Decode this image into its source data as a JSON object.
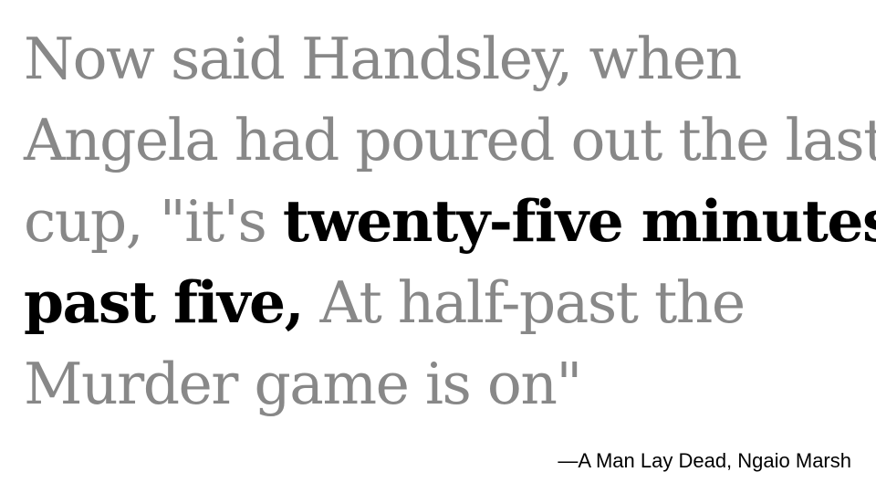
{
  "quote": {
    "line1": "Now said Handsley, when",
    "line2": "Angela had poured out the last",
    "line3_plain": "cup, \"it's ",
    "line3_emphasis": "twenty-five minutes",
    "line4_emphasis": "past five,",
    "line4_plain": " At half-past the",
    "line5": "Murder game is on\""
  },
  "attribution": "—A Man Lay Dead, Ngaio Marsh",
  "colors": {
    "quote_text": "#888888",
    "emphasis_text": "#000000",
    "attribution_text": "#000000",
    "background": "#ffffff"
  }
}
